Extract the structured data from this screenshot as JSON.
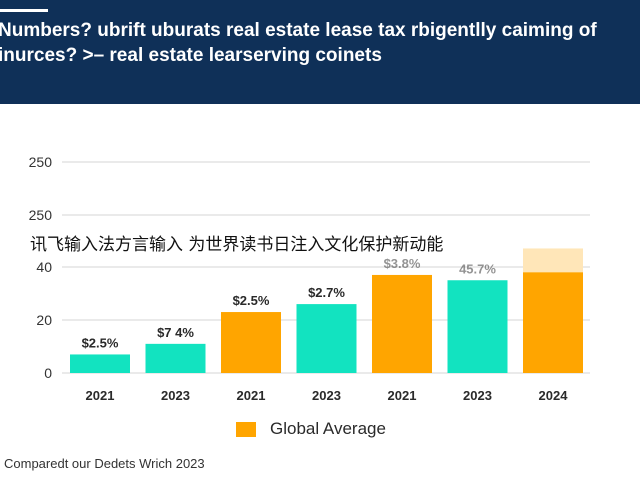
{
  "header": {
    "title": "Numbers? ubrift uburats real estate lease tax rbigentlly caiming of inurces? >– real estate learserving coinets"
  },
  "overlay_text": "讯飞输入法方言输入 为世界读书日注入文化保护新动能",
  "legend": {
    "label": "Global Average"
  },
  "footer": {
    "text": "Comparedt our Dedets Wrich 2023"
  },
  "colors": {
    "header_bg": "#0f3058",
    "teal": "#12e3c0",
    "orange": "#ffa500",
    "orange_faded": "#ffe6b8"
  },
  "chart_data": {
    "type": "bar",
    "y_tick_labels": [
      "250",
      "250",
      "40",
      "20",
      "0"
    ],
    "categories": [
      "2021",
      "2023",
      "2021",
      "2023",
      "2021",
      "2023",
      "2024"
    ],
    "values": [
      7,
      11,
      23,
      26,
      37,
      35,
      38
    ],
    "extended_top": [
      null,
      null,
      null,
      null,
      null,
      null,
      47
    ],
    "colors": [
      "teal",
      "teal",
      "orange",
      "teal",
      "orange",
      "teal",
      "orange"
    ],
    "data_labels": [
      "$2.5%",
      "$7 4%",
      "$2.5%",
      "$2.7%",
      "$3.8%",
      "45.7%",
      ""
    ],
    "data_label_faded": [
      false,
      false,
      false,
      false,
      true,
      true,
      false
    ],
    "grid": true,
    "legend_position": "bottom"
  }
}
